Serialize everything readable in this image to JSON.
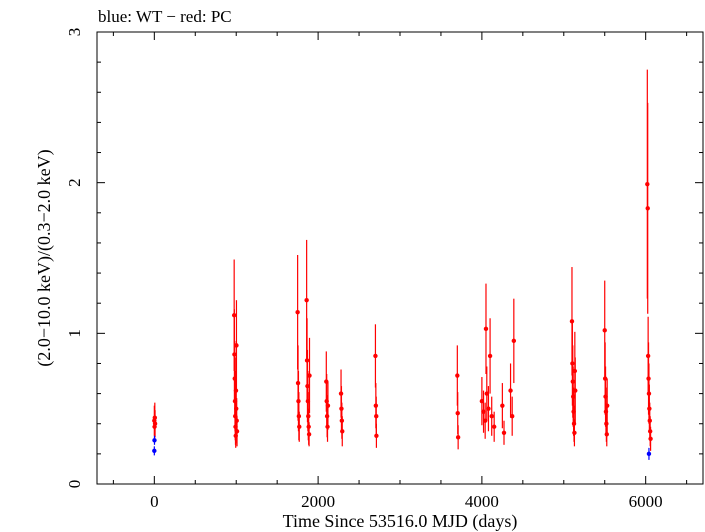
{
  "chart_data": {
    "type": "scatter",
    "title": "blue: WT − red: PC",
    "xlabel": "Time Since 53516.0 MJD (days)",
    "ylabel": "(2.0−10.0 keV)/(0.3−2.0 keV)",
    "xlim": [
      -700,
      6700
    ],
    "ylim": [
      0,
      3
    ],
    "xticks": [
      0,
      2000,
      4000,
      6000
    ],
    "yticks": [
      0,
      1,
      2,
      3
    ],
    "xtick_labels": [
      "0",
      "2000",
      "4000",
      "6000"
    ],
    "ytick_labels": [
      "0",
      "1",
      "2",
      "3"
    ],
    "grid": false,
    "series": [
      {
        "name": "WT",
        "color": "#0000ff",
        "points": [
          {
            "x": 0,
            "y": 0.22,
            "err": 0.03
          },
          {
            "x": 2,
            "y": 0.29,
            "err": 0.03
          },
          {
            "x": 6040,
            "y": 0.2,
            "err": 0.04
          }
        ]
      },
      {
        "name": "PC",
        "color": "#ff0000",
        "points": [
          {
            "x": 0,
            "y": 0.42,
            "err": 0.1
          },
          {
            "x": 3,
            "y": 0.38,
            "err": 0.08
          },
          {
            "x": 6,
            "y": 0.44,
            "err": 0.1
          },
          {
            "x": 9,
            "y": 0.4,
            "err": 0.09
          },
          {
            "x": 975,
            "y": 1.12,
            "err": 0.37
          },
          {
            "x": 978,
            "y": 0.86,
            "err": 0.3
          },
          {
            "x": 982,
            "y": 0.7,
            "err": 0.25
          },
          {
            "x": 985,
            "y": 0.55,
            "err": 0.2
          },
          {
            "x": 988,
            "y": 0.45,
            "err": 0.16
          },
          {
            "x": 991,
            "y": 0.38,
            "err": 0.12
          },
          {
            "x": 994,
            "y": 0.32,
            "err": 0.08
          },
          {
            "x": 997,
            "y": 0.62,
            "err": 0.22
          },
          {
            "x": 1000,
            "y": 0.5,
            "err": 0.18
          },
          {
            "x": 1003,
            "y": 0.92,
            "err": 0.3
          },
          {
            "x": 1006,
            "y": 0.42,
            "err": 0.15
          },
          {
            "x": 1010,
            "y": 0.35,
            "err": 0.1
          },
          {
            "x": 1750,
            "y": 1.14,
            "err": 0.38
          },
          {
            "x": 1755,
            "y": 0.67,
            "err": 0.25
          },
          {
            "x": 1760,
            "y": 0.55,
            "err": 0.2
          },
          {
            "x": 1765,
            "y": 0.45,
            "err": 0.16
          },
          {
            "x": 1770,
            "y": 0.38,
            "err": 0.1
          },
          {
            "x": 1860,
            "y": 1.22,
            "err": 0.4
          },
          {
            "x": 1865,
            "y": 0.82,
            "err": 0.28
          },
          {
            "x": 1870,
            "y": 0.65,
            "err": 0.24
          },
          {
            "x": 1875,
            "y": 0.55,
            "err": 0.2
          },
          {
            "x": 1880,
            "y": 0.45,
            "err": 0.16
          },
          {
            "x": 1885,
            "y": 0.38,
            "err": 0.12
          },
          {
            "x": 1890,
            "y": 0.33,
            "err": 0.08
          },
          {
            "x": 1895,
            "y": 0.72,
            "err": 0.25
          },
          {
            "x": 2100,
            "y": 0.68,
            "err": 0.2
          },
          {
            "x": 2105,
            "y": 0.55,
            "err": 0.18
          },
          {
            "x": 2110,
            "y": 0.45,
            "err": 0.14
          },
          {
            "x": 2115,
            "y": 0.38,
            "err": 0.1
          },
          {
            "x": 2120,
            "y": 0.52,
            "err": 0.16
          },
          {
            "x": 2280,
            "y": 0.6,
            "err": 0.16
          },
          {
            "x": 2285,
            "y": 0.5,
            "err": 0.15
          },
          {
            "x": 2290,
            "y": 0.42,
            "err": 0.12
          },
          {
            "x": 2295,
            "y": 0.35,
            "err": 0.1
          },
          {
            "x": 2700,
            "y": 0.85,
            "err": 0.21
          },
          {
            "x": 2705,
            "y": 0.52,
            "err": 0.15
          },
          {
            "x": 2710,
            "y": 0.45,
            "err": 0.13
          },
          {
            "x": 2712,
            "y": 0.32,
            "err": 0.08
          },
          {
            "x": 3700,
            "y": 0.72,
            "err": 0.2
          },
          {
            "x": 3705,
            "y": 0.47,
            "err": 0.14
          },
          {
            "x": 3710,
            "y": 0.31,
            "err": 0.08
          },
          {
            "x": 4000,
            "y": 0.55,
            "err": 0.16
          },
          {
            "x": 4020,
            "y": 0.48,
            "err": 0.14
          },
          {
            "x": 4040,
            "y": 0.42,
            "err": 0.12
          },
          {
            "x": 4050,
            "y": 1.03,
            "err": 0.3
          },
          {
            "x": 4060,
            "y": 0.6,
            "err": 0.18
          },
          {
            "x": 4080,
            "y": 0.5,
            "err": 0.15
          },
          {
            "x": 4100,
            "y": 0.85,
            "err": 0.25
          },
          {
            "x": 4120,
            "y": 0.45,
            "err": 0.13
          },
          {
            "x": 4150,
            "y": 0.38,
            "err": 0.1
          },
          {
            "x": 4250,
            "y": 0.52,
            "err": 0.15
          },
          {
            "x": 4270,
            "y": 0.34,
            "err": 0.08
          },
          {
            "x": 4350,
            "y": 0.62,
            "err": 0.18
          },
          {
            "x": 4370,
            "y": 0.45,
            "err": 0.13
          },
          {
            "x": 4390,
            "y": 0.95,
            "err": 0.28
          },
          {
            "x": 5100,
            "y": 1.08,
            "err": 0.36
          },
          {
            "x": 5105,
            "y": 0.8,
            "err": 0.28
          },
          {
            "x": 5110,
            "y": 0.68,
            "err": 0.24
          },
          {
            "x": 5115,
            "y": 0.58,
            "err": 0.2
          },
          {
            "x": 5120,
            "y": 0.48,
            "err": 0.16
          },
          {
            "x": 5125,
            "y": 0.4,
            "err": 0.12
          },
          {
            "x": 5130,
            "y": 0.34,
            "err": 0.09
          },
          {
            "x": 5135,
            "y": 0.75,
            "err": 0.26
          },
          {
            "x": 5140,
            "y": 0.62,
            "err": 0.22
          },
          {
            "x": 5500,
            "y": 1.02,
            "err": 0.33
          },
          {
            "x": 5505,
            "y": 0.7,
            "err": 0.24
          },
          {
            "x": 5510,
            "y": 0.58,
            "err": 0.2
          },
          {
            "x": 5515,
            "y": 0.48,
            "err": 0.16
          },
          {
            "x": 5520,
            "y": 0.4,
            "err": 0.12
          },
          {
            "x": 5525,
            "y": 0.33,
            "err": 0.08
          },
          {
            "x": 5530,
            "y": 0.52,
            "err": 0.18
          },
          {
            "x": 6020,
            "y": 1.99,
            "err": 0.76
          },
          {
            "x": 6025,
            "y": 1.83,
            "err": 0.7
          },
          {
            "x": 6030,
            "y": 0.85,
            "err": 0.26
          },
          {
            "x": 6035,
            "y": 0.7,
            "err": 0.24
          },
          {
            "x": 6040,
            "y": 0.6,
            "err": 0.2
          },
          {
            "x": 6045,
            "y": 0.5,
            "err": 0.16
          },
          {
            "x": 6050,
            "y": 0.42,
            "err": 0.12
          },
          {
            "x": 6055,
            "y": 0.35,
            "err": 0.1
          },
          {
            "x": 6060,
            "y": 0.3,
            "err": 0.08
          }
        ]
      }
    ]
  }
}
